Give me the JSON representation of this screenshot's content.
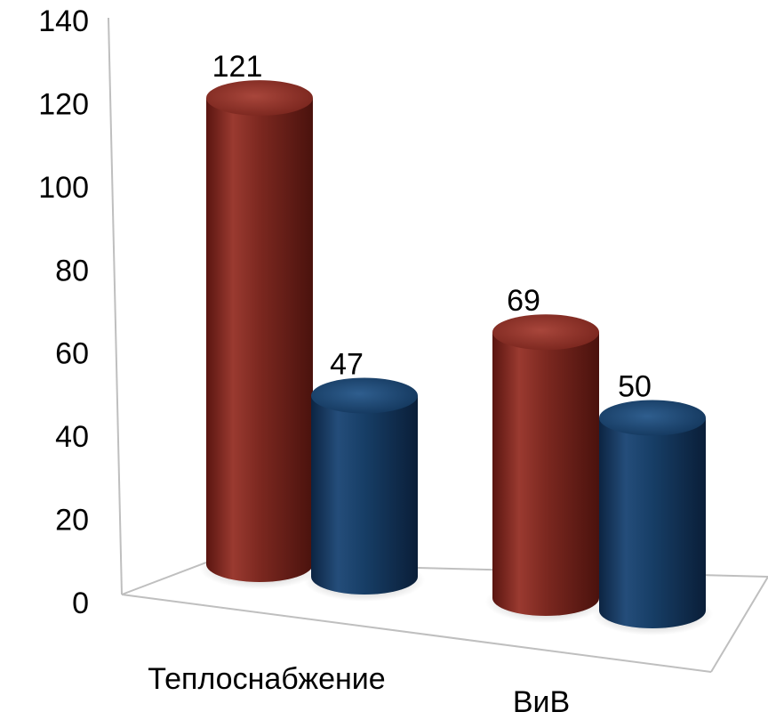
{
  "chart_data": {
    "type": "bar",
    "style": "3d-cylinder",
    "categories": [
      "Теплоснабжение",
      "ВиВ"
    ],
    "series": [
      {
        "values": [
          121,
          69
        ],
        "color": "#8a2b22"
      },
      {
        "values": [
          47,
          50
        ],
        "color": "#173e66"
      }
    ],
    "ylim": [
      0,
      140
    ],
    "yticks": [
      0,
      20,
      40,
      60,
      80,
      100,
      120,
      140
    ],
    "data_labels": true,
    "grid": false,
    "legend": "none",
    "title": "",
    "xlabel": "",
    "ylabel": ""
  }
}
